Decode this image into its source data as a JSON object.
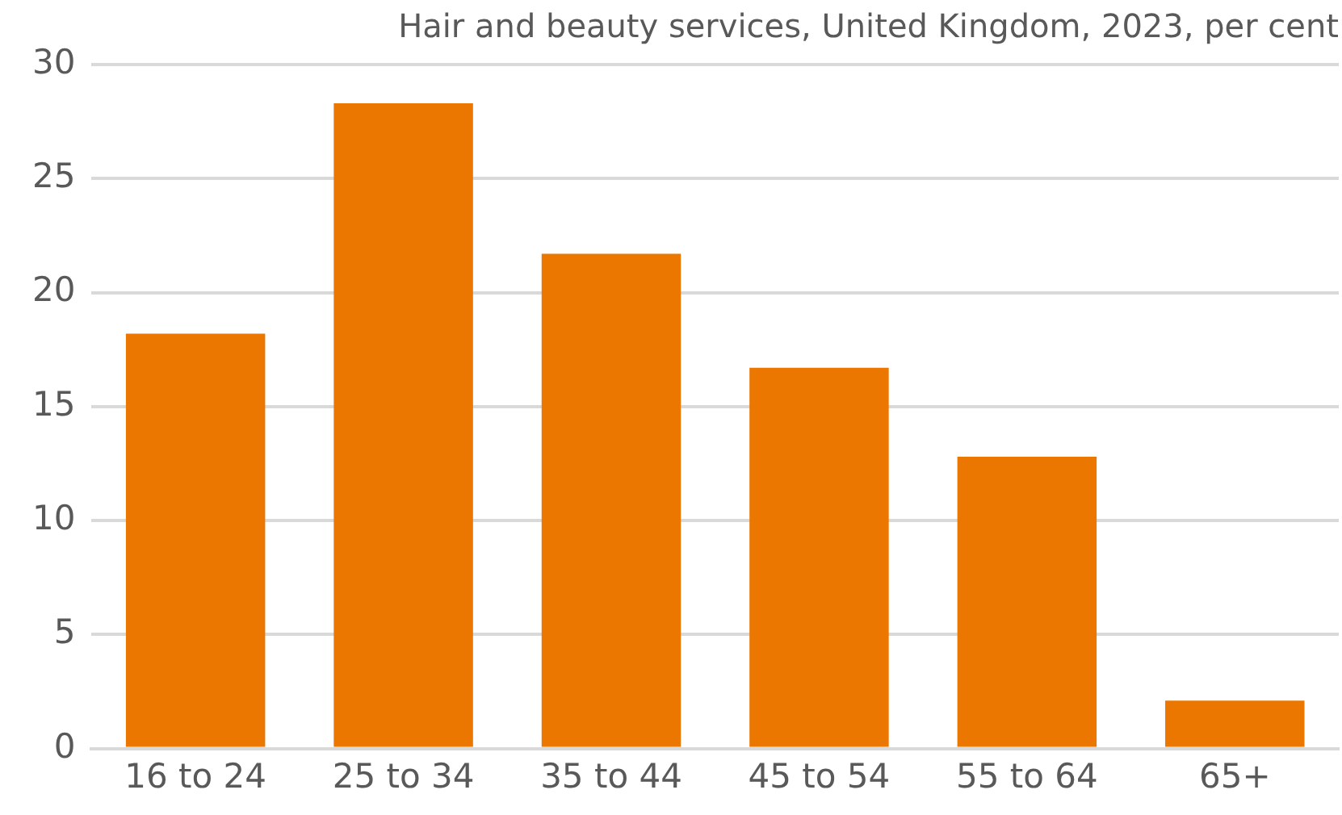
{
  "chart_data": {
    "type": "bar",
    "title": "Hair and beauty services, United Kingdom, 2023, per cent",
    "categories": [
      "16 to 24",
      "25 to 34",
      "35 to 44",
      "45 to 54",
      "55 to 64",
      "65+"
    ],
    "values": [
      18.2,
      28.3,
      21.7,
      16.7,
      12.8,
      2.1
    ],
    "color": "#ec7700",
    "ylim": [
      0,
      30
    ],
    "yticks": [
      0,
      5,
      10,
      15,
      20,
      25,
      30
    ],
    "grid": "y",
    "legend": false
  }
}
